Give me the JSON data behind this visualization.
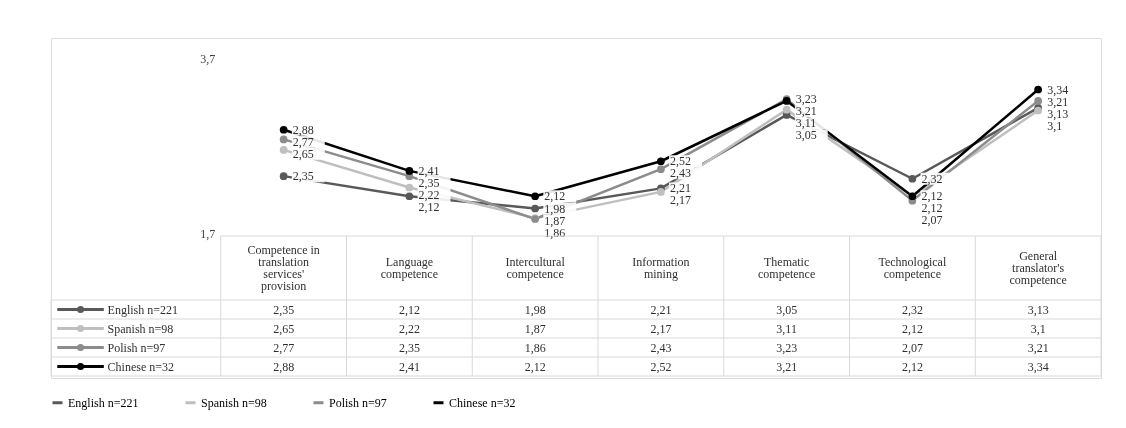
{
  "chart_data": {
    "type": "line",
    "categories": [
      "Competence in translation services' provision",
      "Language competence",
      "Intercultural competence",
      "Information mining",
      "Thematic competence",
      "Technological competence",
      "General translator's competence"
    ],
    "series": [
      {
        "name": "English n=221",
        "color": "#595959",
        "values": [
          2.35,
          2.12,
          1.98,
          2.21,
          3.05,
          2.32,
          3.13
        ],
        "value_labels": [
          "2,35",
          "2,12",
          "1,98",
          "2,21",
          "3,05",
          "2,32",
          "3,13"
        ]
      },
      {
        "name": "Spanish n=98",
        "color": "#bfbfbf",
        "values": [
          2.65,
          2.22,
          1.87,
          2.17,
          3.11,
          2.12,
          3.1
        ],
        "value_labels": [
          "2,65",
          "2,22",
          "1,87",
          "2,17",
          "3,11",
          "2,12",
          "3,1"
        ]
      },
      {
        "name": "Polish n=97",
        "color": "#8c8c8c",
        "values": [
          2.77,
          2.35,
          1.86,
          2.43,
          3.23,
          2.07,
          3.21
        ],
        "value_labels": [
          "2,77",
          "2,35",
          "1,86",
          "2,43",
          "3,23",
          "2,07",
          "3,21"
        ]
      },
      {
        "name": "Chinese n=32",
        "color": "#000000",
        "values": [
          2.88,
          2.41,
          2.12,
          2.52,
          3.21,
          2.12,
          3.34
        ],
        "value_labels": [
          "2,88",
          "2,41",
          "2,12",
          "2,52",
          "3,21",
          "2,12",
          "3,34"
        ]
      }
    ],
    "ylim": [
      1.7,
      3.7
    ],
    "yticks": [
      {
        "value": 3.7,
        "label": "3,7"
      },
      {
        "value": 1.7,
        "label": "1,7"
      }
    ],
    "grid": false,
    "legend": "bottom",
    "marker": "circle",
    "line_style": "solid"
  }
}
